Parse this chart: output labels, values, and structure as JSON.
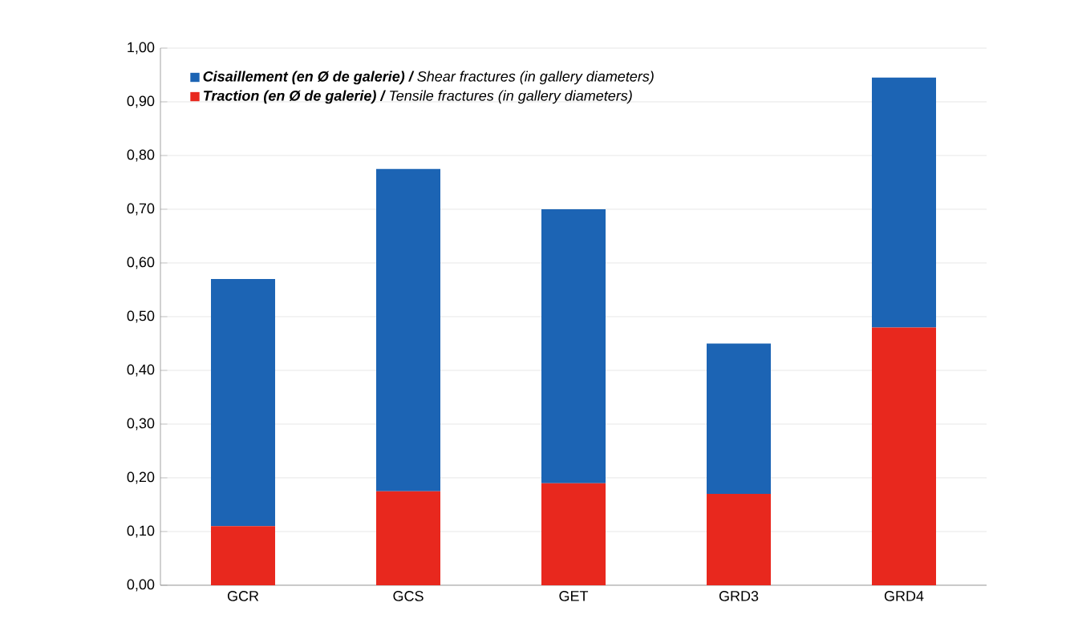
{
  "chart_data": {
    "type": "bar",
    "stacked": true,
    "categories": [
      "GCR",
      "GCS",
      "GET",
      "GRD3",
      "GRD4"
    ],
    "series": [
      {
        "name": "**Traction (en Ø de galerie) /** Tensile fractures (in gallery diameters)",
        "color": "#e8281e",
        "values": [
          0.11,
          0.175,
          0.19,
          0.17,
          0.48
        ]
      },
      {
        "name": "**Cisaillement (en Ø de galerie) /** Shear fractures (in gallery diameters)",
        "color": "#1c64b4",
        "values": [
          0.46,
          0.6,
          0.51,
          0.28,
          0.465
        ]
      }
    ],
    "ylim": [
      0,
      1
    ],
    "yticks": [
      {
        "value": 0,
        "label": "0,00"
      },
      {
        "value": 0.1,
        "label": "0,10"
      },
      {
        "value": 0.2,
        "label": "0,20"
      },
      {
        "value": 0.3,
        "label": "0,30"
      },
      {
        "value": 0.4,
        "label": "0,40"
      },
      {
        "value": 0.5,
        "label": "0,50"
      },
      {
        "value": 0.6,
        "label": "0,60"
      },
      {
        "value": 0.7,
        "label": "0,70"
      },
      {
        "value": 0.8,
        "label": "0,80"
      },
      {
        "value": 0.9,
        "label": "0,90"
      },
      {
        "value": 1,
        "label": "1,00"
      }
    ],
    "grid": "y",
    "legend": "top left"
  }
}
